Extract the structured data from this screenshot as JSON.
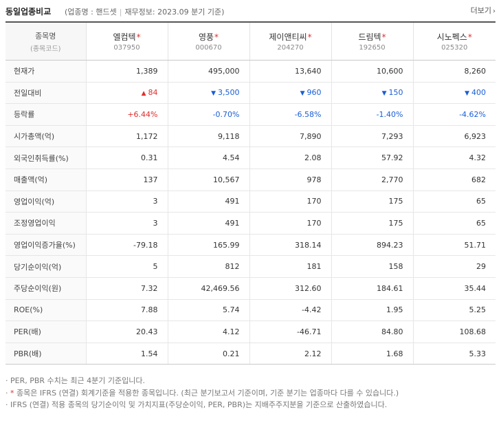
{
  "header": {
    "title": "동일업종비교",
    "industry": "(업종명 : 핸드셋",
    "finance": "재무정보: 2023.09 분기 기준)",
    "more": "더보기"
  },
  "table": {
    "label_header": "종목명",
    "label_subheader": "(종목코드)",
    "companies": [
      {
        "name": "엘컴텍",
        "code": "037950"
      },
      {
        "name": "영풍",
        "code": "000670"
      },
      {
        "name": "제이앤티씨",
        "code": "204270"
      },
      {
        "name": "드림텍",
        "code": "192650"
      },
      {
        "name": "시노펙스",
        "code": "025320"
      }
    ],
    "rows": [
      {
        "label": "현재가",
        "values": [
          "1,389",
          "495,000",
          "13,640",
          "10,600",
          "8,260"
        ]
      },
      {
        "label": "전일대비",
        "values": [
          "84",
          "3,500",
          "960",
          "150",
          "400"
        ],
        "dirs": [
          "up",
          "down",
          "down",
          "down",
          "down"
        ]
      },
      {
        "label": "등락률",
        "values": [
          "+6.44%",
          "-0.70%",
          "-6.58%",
          "-1.40%",
          "-4.62%"
        ],
        "dirs": [
          "up",
          "down",
          "down",
          "down",
          "down"
        ]
      },
      {
        "label": "시가총액(억)",
        "values": [
          "1,172",
          "9,118",
          "7,890",
          "7,293",
          "6,923"
        ]
      },
      {
        "label": "외국인취득률(%)",
        "values": [
          "0.31",
          "4.54",
          "2.08",
          "57.92",
          "4.32"
        ]
      },
      {
        "label": "매출액(억)",
        "values": [
          "137",
          "10,567",
          "978",
          "2,770",
          "682"
        ]
      },
      {
        "label": "영업이익(억)",
        "values": [
          "3",
          "491",
          "170",
          "175",
          "65"
        ]
      },
      {
        "label": "조정영업이익",
        "values": [
          "3",
          "491",
          "170",
          "175",
          "65"
        ]
      },
      {
        "label": "영업이익증가율(%)",
        "values": [
          "-79.18",
          "165.99",
          "318.14",
          "894.23",
          "51.71"
        ]
      },
      {
        "label": "당기순이익(억)",
        "values": [
          "5",
          "812",
          "181",
          "158",
          "29"
        ]
      },
      {
        "label": "주당순이익(원)",
        "values": [
          "7.32",
          "42,469.56",
          "312.60",
          "184.61",
          "35.44"
        ]
      },
      {
        "label": "ROE(%)",
        "values": [
          "7.88",
          "5.74",
          "-4.42",
          "1.95",
          "5.25"
        ]
      },
      {
        "label": "PER(배)",
        "values": [
          "20.43",
          "4.12",
          "-46.71",
          "84.80",
          "108.68"
        ]
      },
      {
        "label": "PBR(배)",
        "values": [
          "1.54",
          "0.21",
          "2.12",
          "1.68",
          "5.33"
        ]
      }
    ]
  },
  "notes": [
    "PER, PBR 수치는 최근 4분기 기준입니다.",
    "종목은 IFRS (연결) 회계기준을 적용한 종목입니다. (최근 분기보고서 기준이며, 기준 분기는 업종마다 다를 수 있습니다.)",
    "IFRS (연결) 적용 종목의 당기순이익 및 가치지표(주당순이익, PER, PBR)는 지배주주지분을 기준으로 산출하였습니다."
  ],
  "colors": {
    "up": "#e02d2d",
    "down": "#1a5ed6",
    "star": "#e02d2d"
  },
  "icons": {
    "up": "triangle-up-icon",
    "down": "triangle-down-icon",
    "more": "chevron-right-icon"
  }
}
